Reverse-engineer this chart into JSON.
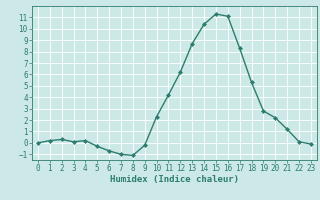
{
  "x": [
    0,
    1,
    2,
    3,
    4,
    5,
    6,
    7,
    8,
    9,
    10,
    11,
    12,
    13,
    14,
    15,
    16,
    17,
    18,
    19,
    20,
    21,
    22,
    23
  ],
  "y": [
    0,
    0.2,
    0.3,
    0.1,
    0.2,
    -0.3,
    -0.7,
    -1.0,
    -1.1,
    -0.2,
    2.3,
    4.2,
    6.2,
    8.7,
    10.4,
    11.3,
    11.1,
    8.3,
    5.3,
    2.8,
    2.2,
    1.2,
    0.1,
    -0.1
  ],
  "line_color": "#2d7d6e",
  "marker": "D",
  "marker_size": 2,
  "bg_color": "#cce9e8",
  "grid_color": "#ffffff",
  "xlabel": "Humidex (Indice chaleur)",
  "xlim": [
    -0.5,
    23.5
  ],
  "ylim": [
    -1.5,
    12
  ],
  "xticks": [
    0,
    1,
    2,
    3,
    4,
    5,
    6,
    7,
    8,
    9,
    10,
    11,
    12,
    13,
    14,
    15,
    16,
    17,
    18,
    19,
    20,
    21,
    22,
    23
  ],
  "yticks": [
    -1,
    0,
    1,
    2,
    3,
    4,
    5,
    6,
    7,
    8,
    9,
    10,
    11
  ],
  "xlabel_fontsize": 6.5,
  "tick_fontsize": 5.5,
  "tick_color": "#2d7d6e",
  "axis_color": "#2d7d6e",
  "line_width": 1.0
}
